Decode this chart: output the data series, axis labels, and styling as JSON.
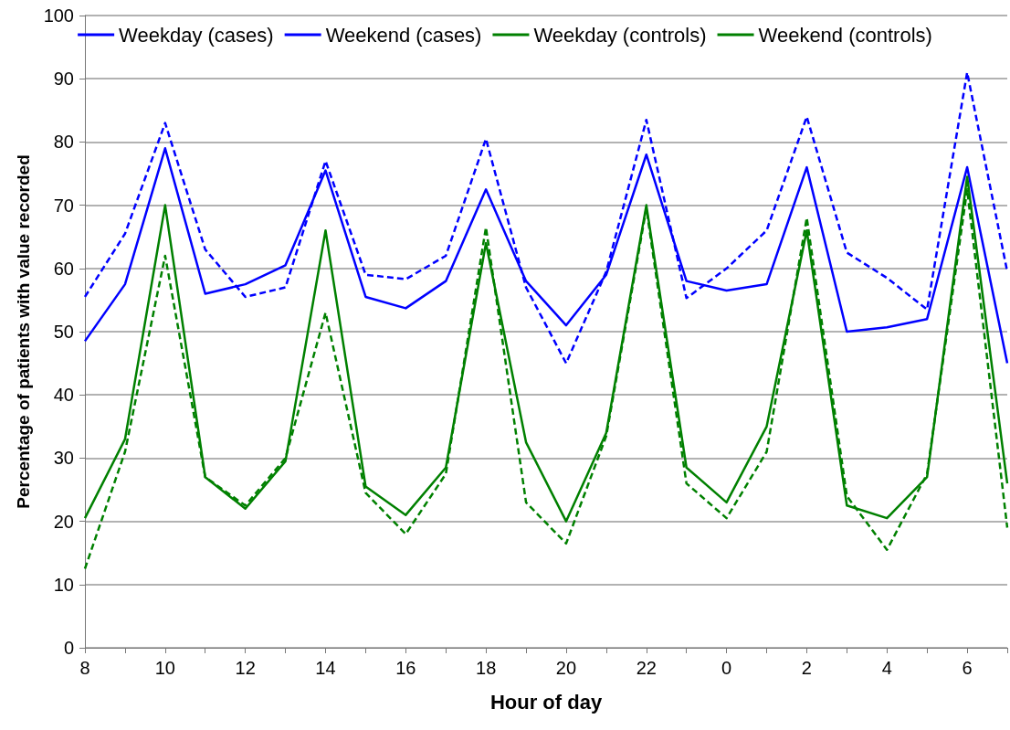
{
  "chart_data": {
    "type": "line",
    "xlabel": "Hour of day",
    "ylabel": "Percentage of patients with value recorded",
    "categories": [
      "8",
      null,
      "10",
      null,
      "12",
      null,
      "14",
      null,
      "16",
      null,
      "18",
      null,
      "20",
      null,
      "22",
      null,
      "0",
      null,
      "2",
      null,
      "4",
      null,
      "6",
      null
    ],
    "series": [
      {
        "name": "Weekday (cases)",
        "color": "#0000ff",
        "line_style": "solid",
        "values": [
          48.5,
          57.5,
          79,
          56,
          57.5,
          60.5,
          75.5,
          55.5,
          53.7,
          58,
          72.5,
          58,
          51,
          59,
          78,
          58,
          56.5,
          57.5,
          76,
          50,
          50.7,
          52,
          76,
          45
        ]
      },
      {
        "name": "Weekend (cases)",
        "color": "#0000ff",
        "line_style": "dashed",
        "values": [
          55.5,
          65.5,
          83,
          63,
          55.5,
          57,
          77,
          59,
          58.3,
          62,
          80.5,
          57,
          45,
          59.5,
          83.5,
          55.3,
          60,
          66,
          84,
          62.5,
          58.5,
          53.5,
          91,
          59.5
        ]
      },
      {
        "name": "Weekday (controls)",
        "color": "#008000",
        "line_style": "solid",
        "values": [
          20.5,
          33,
          70,
          27,
          22,
          29.5,
          66,
          25.5,
          21,
          28.5,
          64,
          32.5,
          20,
          34,
          70,
          28.5,
          23,
          35,
          66,
          22.5,
          20.5,
          27,
          74.5,
          26
        ]
      },
      {
        "name": "Weekend (controls)",
        "color": "#008000",
        "line_style": "dashed",
        "values": [
          12.5,
          31,
          62,
          27,
          22.5,
          30,
          53,
          24.5,
          18,
          27.5,
          66.5,
          23,
          16.5,
          33.5,
          69.5,
          26,
          20.5,
          31,
          68,
          24,
          15.5,
          27.5,
          72.5,
          19
        ]
      }
    ],
    "ylim": [
      0,
      100
    ],
    "yticks": [
      0,
      10,
      20,
      30,
      40,
      50,
      60,
      70,
      80,
      90,
      100
    ],
    "grid": "y",
    "legend": "top",
    "marker": "none"
  }
}
